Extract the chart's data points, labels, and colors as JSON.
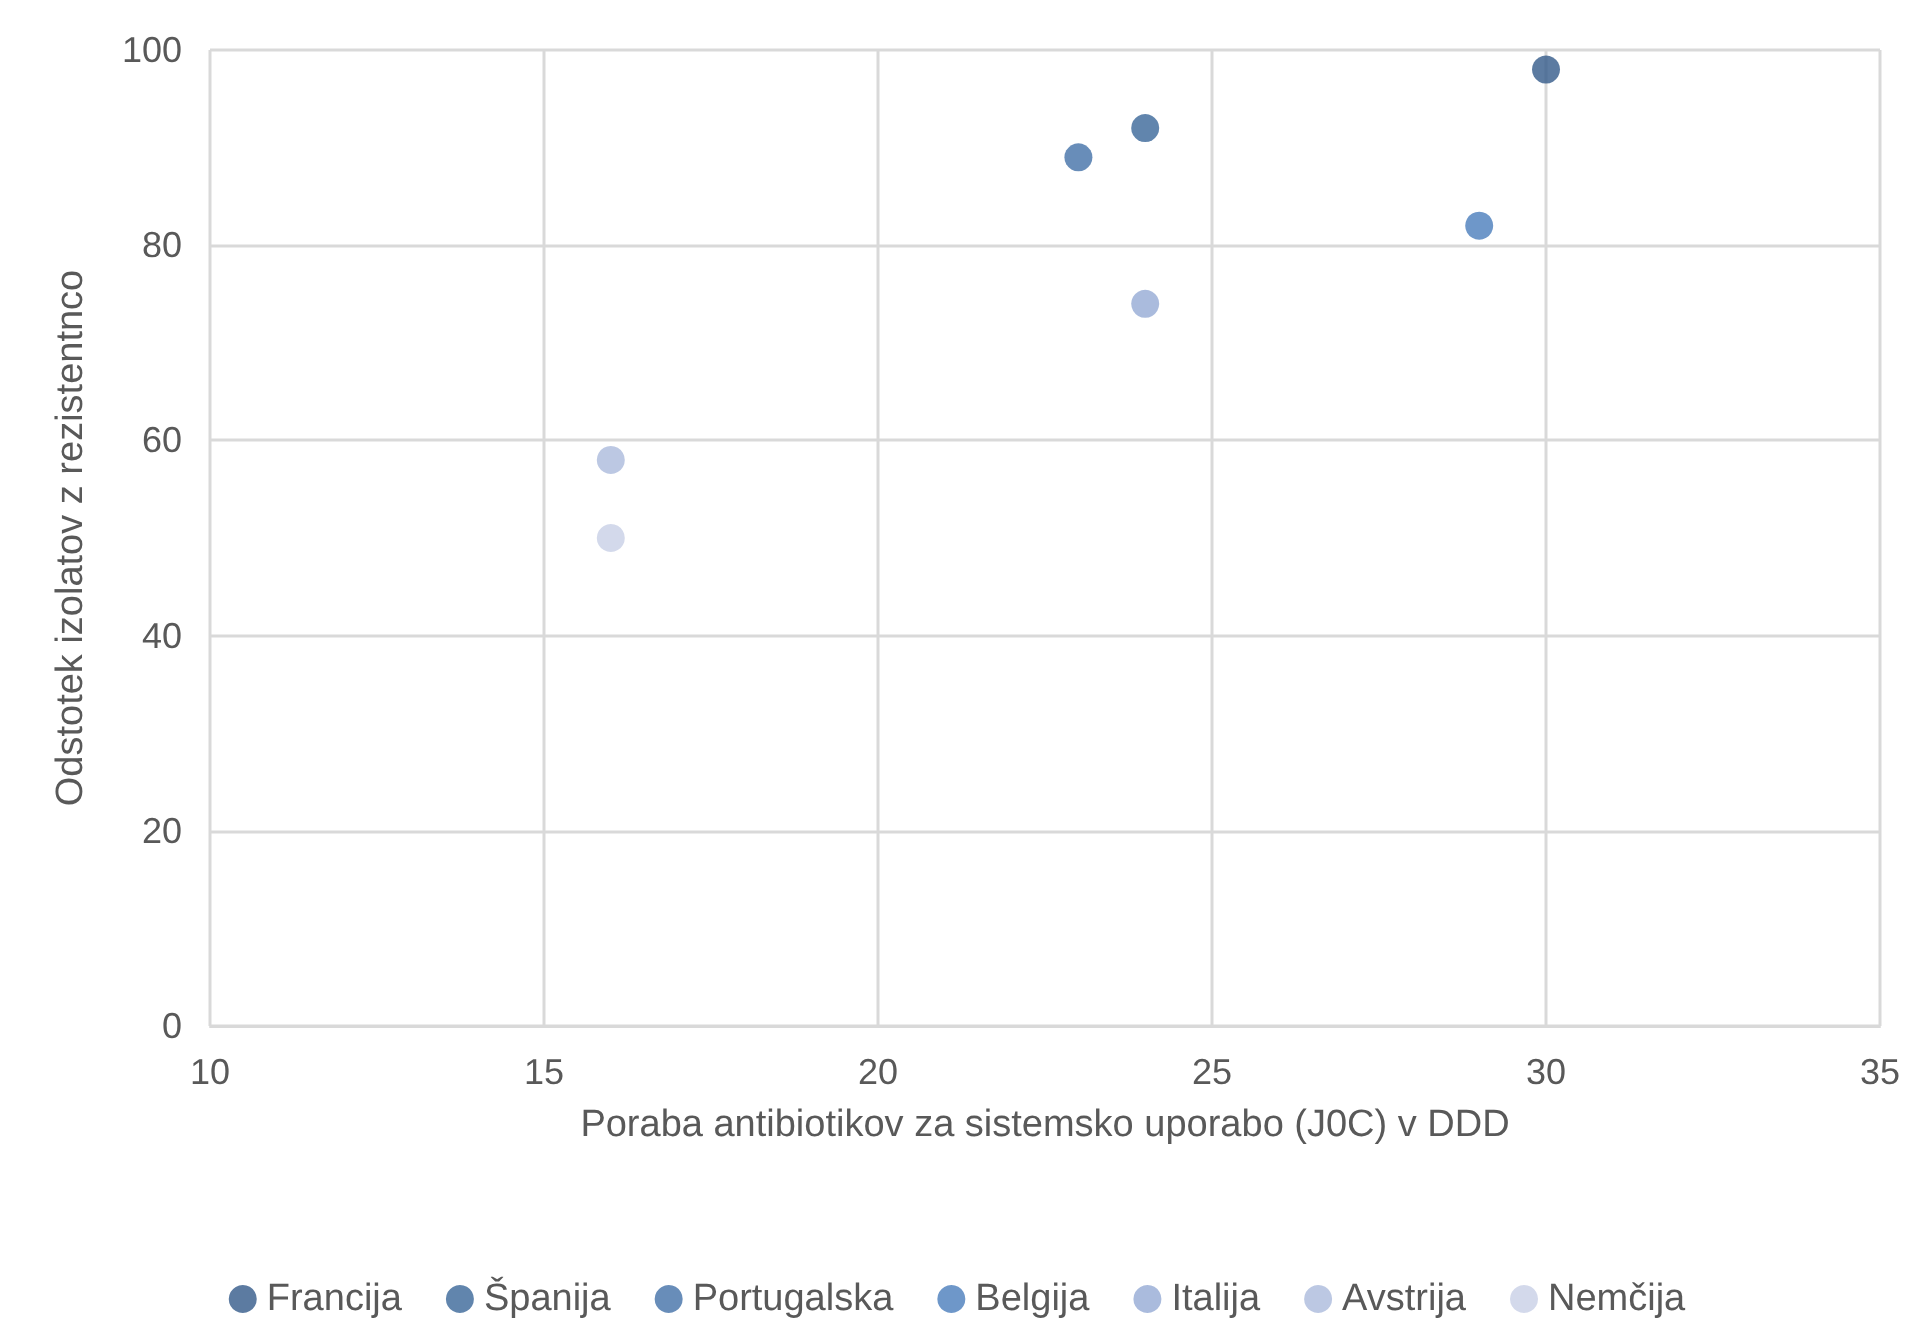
{
  "chart_data": {
    "type": "scatter",
    "xlabel": "Poraba antibiotikov za sistemsko uporabo (J0C) v DDD",
    "ylabel": "Odstotek izolatov z rezistentnco",
    "xlim": [
      10,
      35
    ],
    "xticks": [
      10,
      15,
      20,
      25,
      30,
      35
    ],
    "ylim": [
      0,
      100
    ],
    "yticks": [
      0,
      20,
      40,
      60,
      80,
      100
    ],
    "grid": true,
    "legend": "bottom",
    "marker": "circle",
    "series": [
      {
        "name": "Francija",
        "color": "#335a8a",
        "x": [
          30
        ],
        "values": [
          98
        ]
      },
      {
        "name": "Španija",
        "color": "#3a6698",
        "x": [
          24
        ],
        "values": [
          92
        ]
      },
      {
        "name": "Portugalska",
        "color": "#4270a8",
        "x": [
          23
        ],
        "values": [
          89
        ]
      },
      {
        "name": "Belgija",
        "color": "#4a7dbb",
        "x": [
          29
        ],
        "values": [
          82
        ]
      },
      {
        "name": "Italija",
        "color": "#95aad4",
        "x": [
          24
        ],
        "values": [
          74
        ]
      },
      {
        "name": "Avstrija",
        "color": "#abbadc",
        "x": [
          16
        ],
        "values": [
          58
        ]
      },
      {
        "name": "Nemčija",
        "color": "#c8d0e6",
        "x": [
          16
        ],
        "values": [
          50
        ]
      }
    ]
  }
}
